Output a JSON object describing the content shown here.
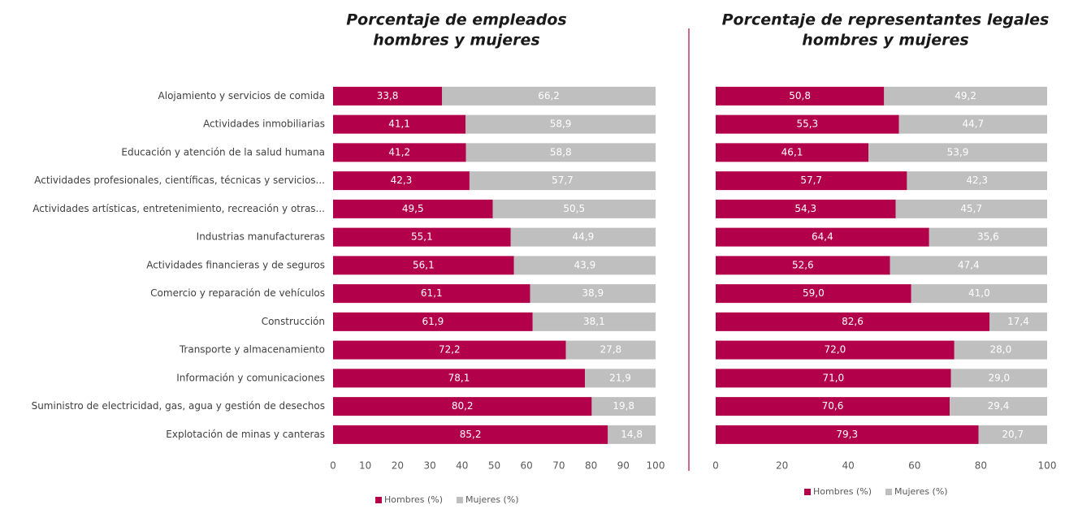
{
  "chart_data": [
    {
      "type": "bar",
      "stacked": true,
      "orientation": "horizontal",
      "title": [
        "Porcentaje de empleados",
        "hombres y mujeres"
      ],
      "categories": [
        "Alojamiento y servicios de comida",
        "Actividades inmobiliarias",
        "Educación y atención de la salud humana",
        "Actividades profesionales, científicas, técnicas y servicios...",
        "Actividades artísticas, entretenimiento, recreación y otras...",
        "Industrias manufactureras",
        "Actividades financieras y de seguros",
        "Comercio y reparación de vehículos",
        "Construcción",
        "Transporte y almacenamiento",
        "Información y comunicaciones",
        "Suministro de electricidad, gas, agua y gestión de desechos",
        "Explotación de minas y canteras"
      ],
      "series": [
        {
          "name": "Hombres (%)",
          "color": "#b3004b",
          "values": [
            33.8,
            41.1,
            41.2,
            42.3,
            49.5,
            55.1,
            56.1,
            61.1,
            61.9,
            72.2,
            78.1,
            80.2,
            85.2
          ],
          "value_labels": [
            "33,8",
            "41,1",
            "41,2",
            "42,3",
            "49,5",
            "55,1",
            "56,1",
            "61,1",
            "61,9",
            "72,2",
            "78,1",
            "80,2",
            "85,2"
          ]
        },
        {
          "name": "Mujeres (%)",
          "color": "#bfbfbf",
          "values": [
            66.2,
            58.9,
            58.8,
            57.7,
            50.5,
            44.9,
            43.9,
            38.9,
            38.1,
            27.8,
            21.9,
            19.8,
            14.8
          ],
          "value_labels": [
            "66,2",
            "58,9",
            "58,8",
            "57,7",
            "50,5",
            "44,9",
            "43,9",
            "38,9",
            "38,1",
            "27,8",
            "21,9",
            "19,8",
            "14,8"
          ]
        }
      ],
      "xlim": [
        0,
        100
      ],
      "xticks": [
        0,
        10,
        20,
        30,
        40,
        50,
        60,
        70,
        80,
        90,
        100
      ],
      "legend": "bottom"
    },
    {
      "type": "bar",
      "stacked": true,
      "orientation": "horizontal",
      "title": [
        "Porcentaje de representantes legales",
        "hombres y mujeres"
      ],
      "series": [
        {
          "name": "Hombres (%)",
          "color": "#b3004b",
          "values": [
            50.8,
            55.3,
            46.1,
            57.7,
            54.3,
            64.4,
            52.6,
            59.0,
            82.6,
            72.0,
            71.0,
            70.6,
            79.3
          ],
          "value_labels": [
            "50,8",
            "55,3",
            "46,1",
            "57,7",
            "54,3",
            "64,4",
            "52,6",
            "59,0",
            "82,6",
            "72,0",
            "71,0",
            "70,6",
            "79,3"
          ]
        },
        {
          "name": "Mujeres (%)",
          "color": "#bfbfbf",
          "values": [
            49.2,
            44.7,
            53.9,
            42.3,
            45.7,
            35.6,
            47.4,
            41.0,
            17.4,
            28.0,
            29.0,
            29.4,
            20.7
          ],
          "value_labels": [
            "49,2",
            "44,7",
            "53,9",
            "42,3",
            "45,7",
            "35,6",
            "47,4",
            "41,0",
            "17,4",
            "28,0",
            "29,0",
            "29,4",
            "20,7"
          ]
        }
      ],
      "xlim": [
        0,
        100
      ],
      "xticks": [
        0,
        20,
        40,
        60,
        80,
        100
      ],
      "legend": "bottom"
    }
  ]
}
